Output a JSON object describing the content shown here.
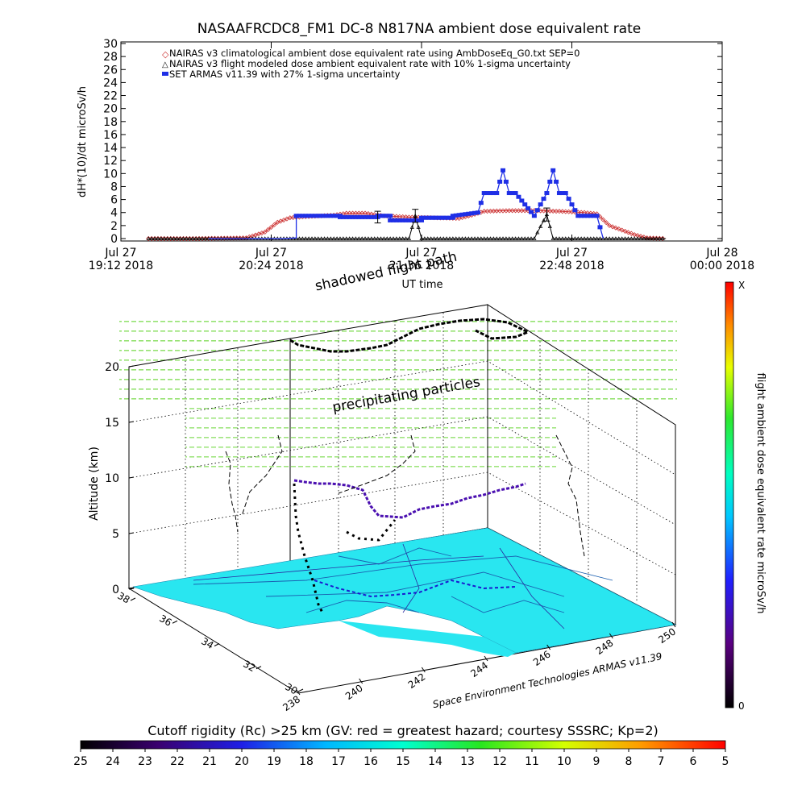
{
  "chart_data": [
    {
      "type": "line",
      "title": "NASAAFRCDC8_FM1 DC-8   N817NA ambient dose equivalent rate",
      "ylabel": "dH*(10)/dt microSv/h",
      "xlabel": "UT time",
      "ylim": [
        0,
        30
      ],
      "yticks": [
        "0",
        "2",
        "4",
        "6",
        "8",
        "10",
        "12",
        "14",
        "16",
        "18",
        "20",
        "22",
        "24",
        "26",
        "28",
        "30"
      ],
      "xticks": [
        {
          "top": "Jul 27",
          "bottom": "19:12 2018"
        },
        {
          "top": "Jul 27",
          "bottom": "20:24 2018"
        },
        {
          "top": "Jul 27",
          "bottom": "21:36 2018"
        },
        {
          "top": "Jul 27",
          "bottom": "22:48 2018"
        },
        {
          "top": "Jul 28",
          "bottom": "00:00 2018"
        }
      ],
      "xlim_hours": [
        19.2,
        24.0
      ],
      "legend": [
        "NAIRAS v3 climatological ambient dose equivalent rate using AmbDoseEq_G0.txt SEP=0",
        "NAIRAS v3 flight modeled dose ambient equivalent rate with 10% 1-sigma uncertainty",
        "SET ARMAS v11.39 with 27% 1-sigma uncertainty"
      ],
      "legend_position": "top-left",
      "grid": false,
      "series": [
        {
          "name": "NAIRAS v3 climatological ambient dose equivalent rate using AmbDoseEq_G0.txt SEP=0",
          "color": "#cc3333",
          "x": [
            19.42,
            19.8,
            20.2,
            20.35,
            20.45,
            20.55,
            20.7,
            20.9,
            21.0,
            21.15,
            21.3,
            21.5,
            21.7,
            21.9,
            22.0,
            22.1,
            22.3,
            22.5,
            22.7,
            22.9,
            23.0,
            23.1,
            23.3,
            23.4,
            23.55
          ],
          "y": [
            0,
            0,
            0.1,
            1.0,
            2.5,
            3.2,
            3.4,
            3.6,
            3.9,
            3.9,
            3.5,
            3.3,
            3.2,
            3.1,
            3.6,
            4.2,
            4.3,
            4.3,
            4.2,
            4.0,
            3.8,
            2.0,
            0.6,
            0.1,
            0
          ]
        },
        {
          "name": "NAIRAS v3 flight modeled dose ambient equivalent rate with 10% 1-sigma uncertainty",
          "color": "#000000",
          "x": [
            19.42,
            20.0,
            20.6,
            21.0,
            21.5,
            21.55,
            21.6,
            22.0,
            22.5,
            22.6,
            22.65,
            23.0,
            23.55
          ],
          "y": [
            0,
            0,
            0,
            0,
            0,
            3.5,
            0,
            0,
            0,
            3.7,
            0,
            0,
            0
          ]
        },
        {
          "name": "SET ARMAS v11.39 with 27% 1-sigma uncertainty",
          "color": "#1f2fe6",
          "x": [
            19.9,
            20.5,
            20.6,
            20.6,
            20.95,
            20.95,
            21.25,
            21.25,
            21.35,
            21.35,
            21.6,
            21.6,
            21.85,
            21.85,
            22.05,
            22.1,
            22.2,
            22.25,
            22.3,
            22.35,
            22.5,
            22.6,
            22.65,
            22.7,
            22.75,
            22.85,
            23.0,
            23.05
          ],
          "y": [
            0,
            0,
            0.1,
            3.5,
            3.5,
            3.3,
            3.3,
            3.5,
            3.5,
            2.8,
            2.8,
            3.2,
            3.2,
            3.5,
            4.0,
            7.0,
            7.0,
            10.5,
            7.0,
            7.0,
            3.5,
            7.0,
            10.5,
            7.0,
            7.0,
            3.5,
            3.5,
            0
          ]
        }
      ]
    },
    {
      "type": "scatter",
      "subtype": "3d-flight-path",
      "title": "",
      "zlabel": "Altitude (km)",
      "zlim": [
        0,
        20
      ],
      "zticks": [
        "0",
        "5",
        "10",
        "15",
        "20"
      ],
      "lat_ticks": [
        "30",
        "32",
        "34",
        "36",
        "38"
      ],
      "lon_ticks": [
        "238",
        "240",
        "242",
        "244",
        "246",
        "248",
        "250"
      ],
      "annotations": [
        "shadowed flight path",
        "precipitating particles"
      ],
      "credit": "Space Environment Technologies ARMAS v11.39",
      "colorbar": {
        "label": "flight ambient dose equivalent rate microSv/h",
        "min_label": "0",
        "max_label": "X"
      },
      "cruise_altitude_km": 10.5
    },
    {
      "type": "heatmap",
      "subtype": "colorbar",
      "title": "Cutoff rigidity (Rc) >25 km (GV: red = greatest hazard; courtesy SSSRC; Kp=2)",
      "tick_labels": [
        "25",
        "24",
        "23",
        "22",
        "21",
        "20",
        "19",
        "18",
        "17",
        "16",
        "15",
        "14",
        "13",
        "12",
        "11",
        "10",
        "9",
        "8",
        "7",
        "6",
        "5"
      ],
      "range": [
        25,
        5
      ]
    }
  ]
}
